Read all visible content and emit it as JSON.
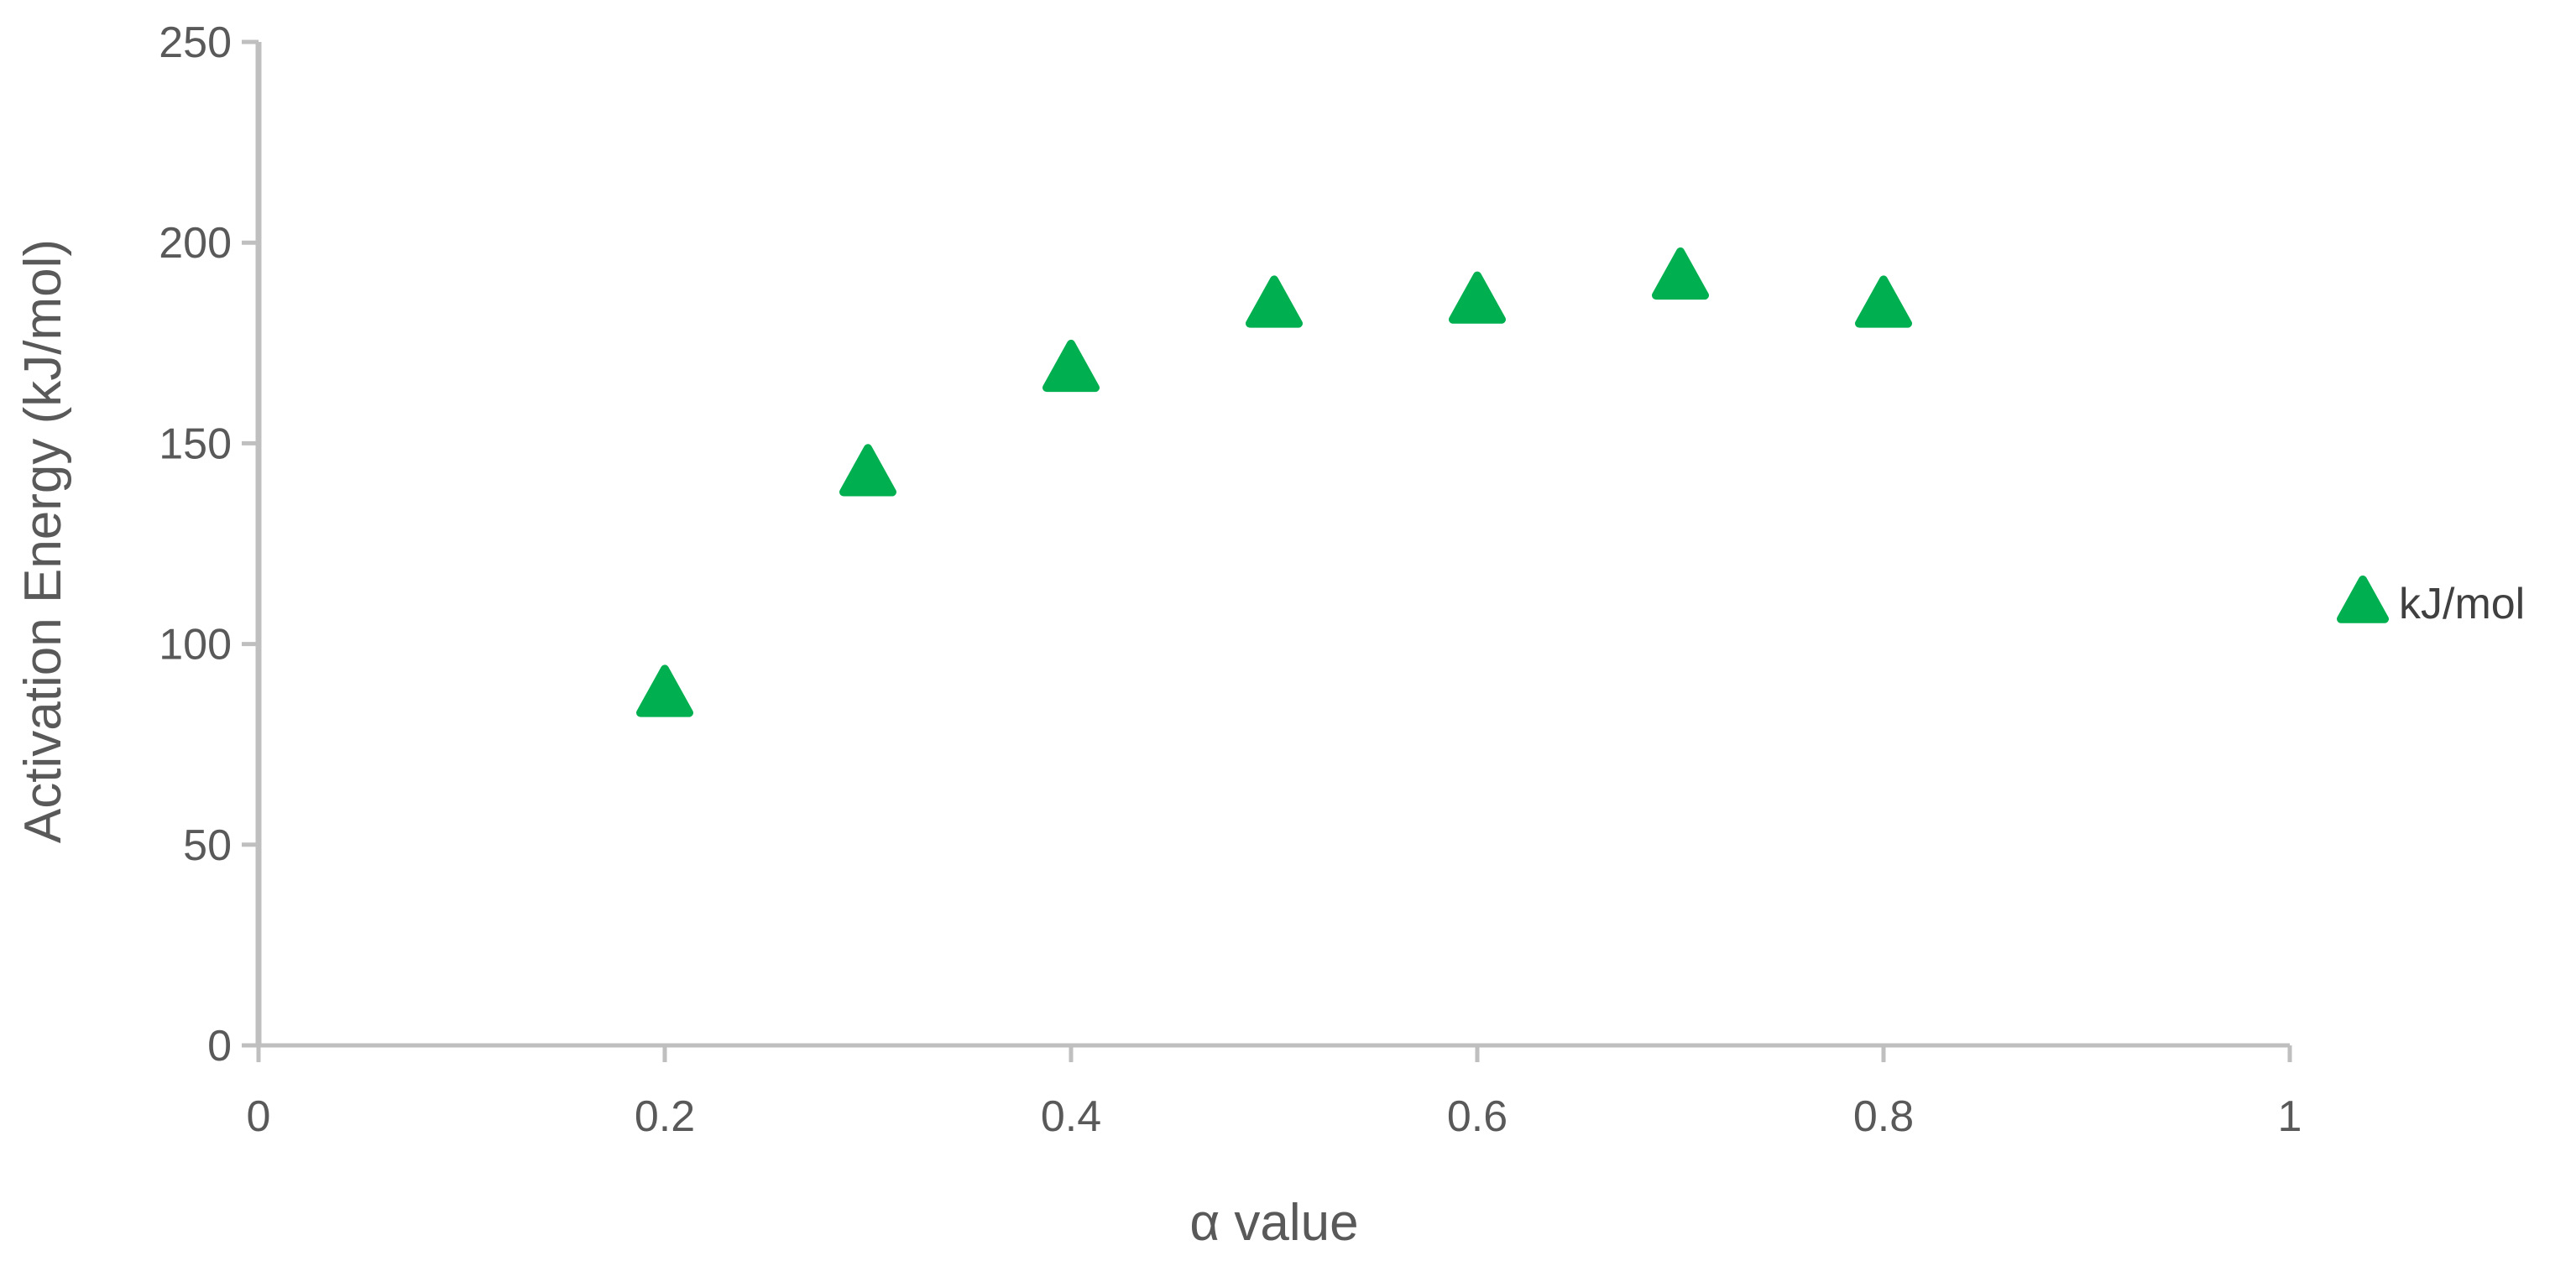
{
  "chart_data": {
    "type": "scatter",
    "title": "",
    "xlabel": "α value",
    "ylabel": "Activation Energy (kJ/mol)",
    "xlim": [
      0,
      1
    ],
    "ylim": [
      0,
      250
    ],
    "x_ticks": [
      0,
      0.2,
      0.4,
      0.6,
      0.8,
      1
    ],
    "x_tick_labels": [
      "0",
      "0.2",
      "0.4",
      "0.6",
      "0.8",
      "1"
    ],
    "y_ticks": [
      0,
      50,
      100,
      150,
      200,
      250
    ],
    "y_tick_labels": [
      "0",
      "50",
      "100",
      "150",
      "200",
      "250"
    ],
    "grid": false,
    "legend_position": "right",
    "series": [
      {
        "name": "kJ/mol",
        "marker": "triangle",
        "color": "#00b050",
        "x": [
          0.2,
          0.3,
          0.4,
          0.5,
          0.6,
          0.7,
          0.8
        ],
        "y": [
          87,
          142,
          168,
          184,
          185,
          191,
          184
        ]
      }
    ]
  }
}
